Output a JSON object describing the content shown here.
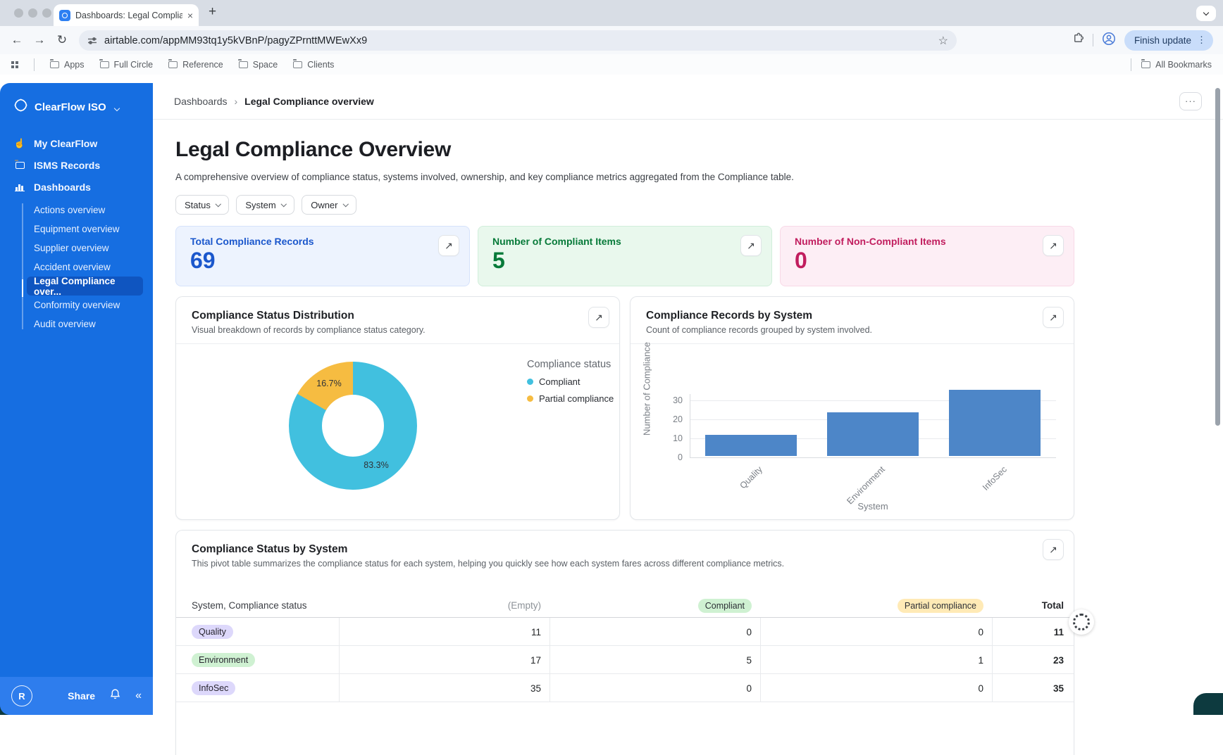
{
  "browser": {
    "tab_title": "Dashboards: Legal Complianc",
    "url": "airtable.com/appMM93tq1y5kVBnP/pagyZPrnttMWEwXx9",
    "finish_update_label": "Finish update",
    "bookmarks": [
      "Apps",
      "Full Circle",
      "Reference",
      "Space",
      "Clients"
    ],
    "all_bookmarks_label": "All Bookmarks"
  },
  "icons": {
    "expand": "↗",
    "back": "←",
    "forward": "→",
    "reload": "↻",
    "star": "☆",
    "kebab_v": "⋮",
    "kebab_h": "···",
    "plus": "+",
    "close": "×",
    "collapse": "«",
    "hand": "☝",
    "breadcrumb_sep": "›"
  },
  "sidebar": {
    "workspace_name": "ClearFlow ISO",
    "items": [
      "My ClearFlow",
      "ISMS Records",
      "Dashboards"
    ],
    "subitems": [
      "Actions overview",
      "Equipment overview",
      "Supplier overview",
      "Accident overview",
      "Legal Compliance over...",
      "Conformity overview",
      "Audit overview"
    ],
    "footer": {
      "avatar_initial": "R",
      "share_label": "Share"
    }
  },
  "breadcrumb": {
    "parent": "Dashboards",
    "current": "Legal Compliance overview"
  },
  "page": {
    "title": "Legal Compliance Overview",
    "subtitle": "A comprehensive overview of compliance status, systems involved, ownership, and key compliance metrics aggregated from the Compliance table.",
    "filters": [
      "Status",
      "System",
      "Owner"
    ]
  },
  "metrics": [
    {
      "label": "Total Compliance Records",
      "value": "69",
      "accent": "#1b57cc",
      "bg": "#edf3fe",
      "border": "#d6e3fb"
    },
    {
      "label": "Number of Compliant Items",
      "value": "5",
      "accent": "#077a39",
      "bg": "#e9f8ed",
      "border": "#d1eedb"
    },
    {
      "label": "Number of Non-Compliant Items",
      "value": "0",
      "accent": "#c11d5e",
      "bg": "#fdeef5",
      "border": "#f8d9e7"
    }
  ],
  "chart_data": [
    {
      "type": "pie",
      "donut": true,
      "title": "Compliance Status Distribution",
      "subtitle": "Visual breakdown of records by compliance status category.",
      "legend_title": "Compliance status",
      "legend_position": "right",
      "slices": [
        {
          "label": "Compliant",
          "pct": 83.3,
          "display": "83.3%",
          "color": "#41c0df"
        },
        {
          "label": "Partial compliance",
          "pct": 16.7,
          "display": "16.7%",
          "color": "#f6bc41"
        }
      ]
    },
    {
      "type": "bar",
      "title": "Compliance Records by System",
      "subtitle": "Count of compliance records grouped by system involved.",
      "categories": [
        "Quality",
        "Environment",
        "InfoSec"
      ],
      "values": [
        11,
        23,
        35
      ],
      "xlabel": "System",
      "ylabel": "Number of Compliance",
      "yticks": [
        0,
        10,
        20,
        30
      ],
      "ylim": [
        0,
        37
      ],
      "grid": true,
      "bar_color": "#4d86c8"
    }
  ],
  "pivot": {
    "title": "Compliance Status by System",
    "subtitle": "This pivot table summarizes the compliance status for each system, helping you quickly see how each system fares across different compliance metrics.",
    "row_header": "System, Compliance status",
    "columns": [
      "(Empty)",
      "Compliant",
      "Partial compliance",
      "Total"
    ],
    "header_pills": [
      null,
      "#cff1d2",
      "#ffeab6",
      null
    ],
    "rows": [
      {
        "system": "Quality",
        "pill_color": "#ddd8fb",
        "values": [
          "11",
          "0",
          "0",
          "11"
        ]
      },
      {
        "system": "Environment",
        "pill_color": "#cff1d2",
        "values": [
          "17",
          "5",
          "1",
          "23"
        ]
      },
      {
        "system": "InfoSec",
        "pill_color": "#ddd8fb",
        "values": [
          "35",
          "0",
          "0",
          "35"
        ]
      }
    ]
  }
}
